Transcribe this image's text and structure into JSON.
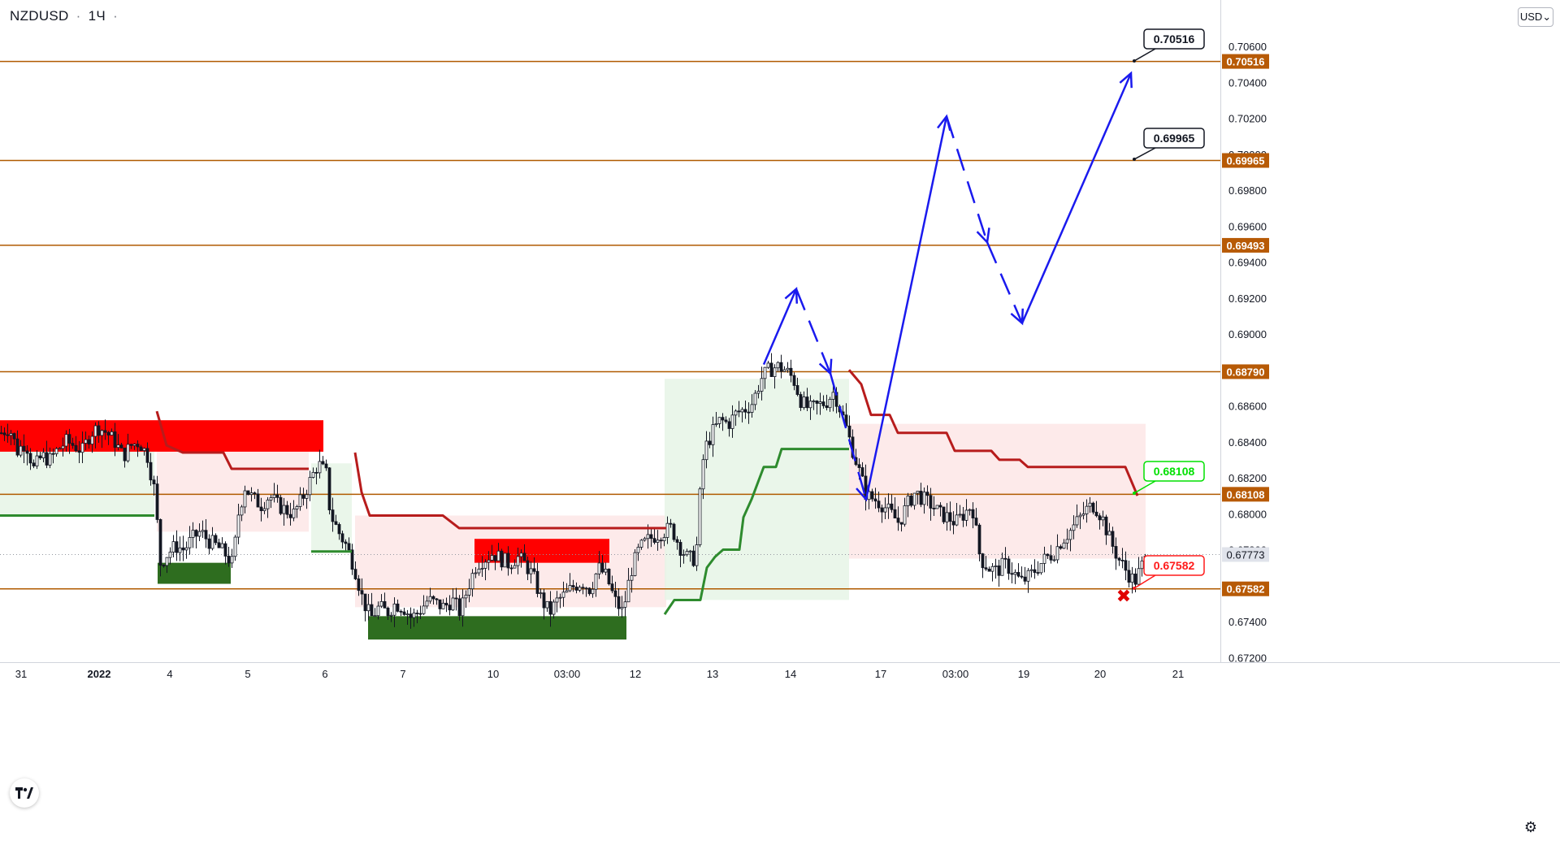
{
  "header": {
    "symbol": "NZDUSD",
    "separator": "·",
    "timeframe": "1Ч",
    "tail": "·"
  },
  "currency_button": "USD⌄",
  "colors": {
    "level_line": "#b05a00",
    "level_badge_bg": "#b75a06",
    "blue_path": "#1a1aee",
    "supply_zone": "#ff0000",
    "demand_zone": "#2e6d1f",
    "trend_red": "#b71c1c",
    "trend_green": "#2e8b2e",
    "bear_fill": "#fde6e6",
    "bull_fill": "#e6f4e6",
    "green_label": "#00e000",
    "red_label": "#ff1a1a"
  },
  "chart_data": {
    "type": "candlestick",
    "symbol": "NZDUSD",
    "timeframe": "1Ч",
    "ylim": [
      0.6715,
      0.7075
    ],
    "y_ticks": [
      "0.70600",
      "0.70400",
      "0.70200",
      "0.70000",
      "0.69800",
      "0.69600",
      "0.69400",
      "0.69200",
      "0.69000",
      "0.68800",
      "0.68600",
      "0.68400",
      "0.68200",
      "0.68000",
      "0.67800",
      "0.67600",
      "0.67400",
      "0.67200"
    ],
    "x_ticks": [
      {
        "label": "31",
        "bold": false
      },
      {
        "label": "2022",
        "bold": true
      },
      {
        "label": "4",
        "bold": false
      },
      {
        "label": "5",
        "bold": false
      },
      {
        "label": "6",
        "bold": false
      },
      {
        "label": "7",
        "bold": false
      },
      {
        "label": "10",
        "bold": false
      },
      {
        "label": "03:00",
        "bold": false
      },
      {
        "label": "12",
        "bold": false
      },
      {
        "label": "13",
        "bold": false
      },
      {
        "label": "14",
        "bold": false
      },
      {
        "label": "17",
        "bold": false
      },
      {
        "label": "03:00",
        "bold": false
      },
      {
        "label": "19",
        "bold": false
      },
      {
        "label": "20",
        "bold": false
      },
      {
        "label": "21",
        "bold": false
      }
    ],
    "horizontal_levels": [
      {
        "value": 0.70516,
        "label": "0.70516"
      },
      {
        "value": 0.69965,
        "label": "0.69965"
      },
      {
        "value": 0.69493,
        "label": "0.69493"
      },
      {
        "value": 0.6879,
        "label": "0.68790"
      },
      {
        "value": 0.68108,
        "label": "0.68108"
      },
      {
        "value": 0.67582,
        "label": "0.67582"
      }
    ],
    "current_price": {
      "value": 0.67773,
      "label": "0.67773"
    },
    "callouts": [
      {
        "label": "0.70516",
        "value": 0.70516,
        "style": "black"
      },
      {
        "label": "0.69965",
        "value": 0.69965,
        "style": "black"
      },
      {
        "label": "0.68108",
        "value": 0.68108,
        "style": "green"
      },
      {
        "label": "0.67582",
        "value": 0.67582,
        "style": "red"
      }
    ],
    "supply_zones": [
      {
        "t0": 0,
        "t1": 398,
        "low": 0.68345,
        "high": 0.6852
      },
      {
        "t0": 584,
        "t1": 750,
        "low": 0.67727,
        "high": 0.6786
      }
    ],
    "demand_zones": [
      {
        "t0": 194,
        "t1": 284,
        "low": 0.6761,
        "high": 0.67727
      },
      {
        "t0": 453,
        "t1": 771,
        "low": 0.673,
        "high": 0.6743
      }
    ],
    "projected_path": [
      [
        940,
        0.6883
      ],
      [
        980,
        0.6925
      ],
      [
        1022,
        0.6878
      ],
      [
        1066,
        0.6808
      ],
      [
        1165,
        0.7021
      ],
      [
        1215,
        0.6951
      ],
      [
        1258,
        0.6906
      ],
      [
        1392,
        0.7045
      ]
    ],
    "prices": [
      [
        0,
        0.6845
      ],
      [
        10,
        0.6848
      ],
      [
        20,
        0.6835
      ],
      [
        30,
        0.684
      ],
      [
        40,
        0.6825
      ],
      [
        50,
        0.6832
      ],
      [
        60,
        0.683
      ],
      [
        70,
        0.6836
      ],
      [
        80,
        0.684
      ],
      [
        90,
        0.6838
      ],
      [
        100,
        0.6835
      ],
      [
        110,
        0.6845
      ],
      [
        120,
        0.6848
      ],
      [
        130,
        0.6845
      ],
      [
        140,
        0.684
      ],
      [
        150,
        0.6832
      ],
      [
        160,
        0.6838
      ],
      [
        170,
        0.684
      ],
      [
        180,
        0.6832
      ],
      [
        190,
        0.681
      ],
      [
        195,
        0.6772
      ],
      [
        205,
        0.6778
      ],
      [
        215,
        0.6782
      ],
      [
        225,
        0.678
      ],
      [
        235,
        0.6786
      ],
      [
        245,
        0.679
      ],
      [
        255,
        0.6785
      ],
      [
        265,
        0.6782
      ],
      [
        275,
        0.6778
      ],
      [
        285,
        0.6772
      ],
      [
        292,
        0.68
      ],
      [
        300,
        0.6815
      ],
      [
        310,
        0.6808
      ],
      [
        320,
        0.6805
      ],
      [
        330,
        0.681
      ],
      [
        340,
        0.6805
      ],
      [
        350,
        0.6802
      ],
      [
        360,
        0.68
      ],
      [
        370,
        0.6808
      ],
      [
        380,
        0.6818
      ],
      [
        390,
        0.6828
      ],
      [
        400,
        0.6822
      ],
      [
        405,
        0.68
      ],
      [
        415,
        0.679
      ],
      [
        425,
        0.6782
      ],
      [
        435,
        0.677
      ],
      [
        445,
        0.6752
      ],
      [
        455,
        0.6742
      ],
      [
        465,
        0.6748
      ],
      [
        475,
        0.6745
      ],
      [
        485,
        0.675
      ],
      [
        495,
        0.6748
      ],
      [
        505,
        0.6742
      ],
      [
        515,
        0.6746
      ],
      [
        525,
        0.6752
      ],
      [
        535,
        0.675
      ],
      [
        545,
        0.6748
      ],
      [
        555,
        0.6752
      ],
      [
        565,
        0.6745
      ],
      [
        575,
        0.676
      ],
      [
        585,
        0.6772
      ],
      [
        595,
        0.6775
      ],
      [
        605,
        0.6778
      ],
      [
        615,
        0.6775
      ],
      [
        625,
        0.6772
      ],
      [
        635,
        0.6776
      ],
      [
        645,
        0.6772
      ],
      [
        655,
        0.6765
      ],
      [
        665,
        0.6752
      ],
      [
        675,
        0.6745
      ],
      [
        685,
        0.6752
      ],
      [
        695,
        0.6755
      ],
      [
        705,
        0.676
      ],
      [
        715,
        0.6762
      ],
      [
        725,
        0.6758
      ],
      [
        735,
        0.677
      ],
      [
        745,
        0.6765
      ],
      [
        755,
        0.6752
      ],
      [
        765,
        0.6745
      ],
      [
        775,
        0.6768
      ],
      [
        785,
        0.678
      ],
      [
        795,
        0.6785
      ],
      [
        805,
        0.6788
      ],
      [
        815,
        0.679
      ],
      [
        825,
        0.6792
      ],
      [
        835,
        0.6782
      ],
      [
        845,
        0.6775
      ],
      [
        855,
        0.6775
      ],
      [
        860,
        0.681
      ],
      [
        865,
        0.6835
      ],
      [
        875,
        0.6845
      ],
      [
        885,
        0.6852
      ],
      [
        895,
        0.685
      ],
      [
        905,
        0.6856
      ],
      [
        915,
        0.6858
      ],
      [
        925,
        0.6862
      ],
      [
        935,
        0.6875
      ],
      [
        945,
        0.688
      ],
      [
        955,
        0.6882
      ],
      [
        965,
        0.688
      ],
      [
        975,
        0.6875
      ],
      [
        985,
        0.6862
      ],
      [
        995,
        0.6858
      ],
      [
        1005,
        0.686
      ],
      [
        1015,
        0.6862
      ],
      [
        1025,
        0.6868
      ],
      [
        1035,
        0.6855
      ],
      [
        1045,
        0.684
      ],
      [
        1055,
        0.6825
      ],
      [
        1065,
        0.681
      ],
      [
        1075,
        0.6808
      ],
      [
        1085,
        0.6805
      ],
      [
        1095,
        0.68
      ],
      [
        1105,
        0.6795
      ],
      [
        1115,
        0.6805
      ],
      [
        1125,
        0.6812
      ],
      [
        1135,
        0.6808
      ],
      [
        1145,
        0.6805
      ],
      [
        1155,
        0.68
      ],
      [
        1165,
        0.6798
      ],
      [
        1175,
        0.6795
      ],
      [
        1185,
        0.68
      ],
      [
        1195,
        0.6805
      ],
      [
        1205,
        0.6775
      ],
      [
        1215,
        0.677
      ],
      [
        1225,
        0.6768
      ],
      [
        1235,
        0.6772
      ],
      [
        1245,
        0.6768
      ],
      [
        1255,
        0.6762
      ],
      [
        1265,
        0.6765
      ],
      [
        1275,
        0.677
      ],
      [
        1285,
        0.6775
      ],
      [
        1295,
        0.6778
      ],
      [
        1305,
        0.6785
      ],
      [
        1315,
        0.679
      ],
      [
        1325,
        0.6796
      ],
      [
        1335,
        0.6802
      ],
      [
        1345,
        0.6805
      ],
      [
        1355,
        0.6798
      ],
      [
        1365,
        0.6785
      ],
      [
        1375,
        0.6775
      ],
      [
        1385,
        0.6768
      ],
      [
        1395,
        0.6762
      ],
      [
        1405,
        0.6772
      ],
      [
        1412,
        0.6777
      ]
    ],
    "trend_red": [
      [
        [
          193,
          0.6857
        ],
        [
          205,
          0.6838
        ],
        [
          215,
          0.6836
        ],
        [
          225,
          0.6834
        ],
        [
          275,
          0.6834
        ],
        [
          285,
          0.6825
        ],
        [
          380,
          0.6825
        ]
      ],
      [
        [
          437,
          0.6834
        ],
        [
          445,
          0.6812
        ],
        [
          455,
          0.6799
        ],
        [
          545,
          0.6799
        ],
        [
          565,
          0.6792
        ],
        [
          820,
          0.6792
        ]
      ],
      [
        [
          1045,
          0.688
        ],
        [
          1060,
          0.6872
        ],
        [
          1072,
          0.6855
        ],
        [
          1095,
          0.6855
        ],
        [
          1105,
          0.6845
        ],
        [
          1165,
          0.6845
        ],
        [
          1175,
          0.6835
        ],
        [
          1220,
          0.6835
        ],
        [
          1230,
          0.683
        ],
        [
          1255,
          0.683
        ],
        [
          1265,
          0.6826
        ],
        [
          1385,
          0.6826
        ],
        [
          1400,
          0.681
        ]
      ]
    ],
    "trend_green": [
      [
        [
          0,
          0.6799
        ],
        [
          190,
          0.6799
        ]
      ],
      [
        [
          383,
          0.6779
        ],
        [
          433,
          0.6779
        ]
      ],
      [
        [
          818,
          0.6744
        ],
        [
          830,
          0.6752
        ],
        [
          862,
          0.6752
        ],
        [
          870,
          0.677
        ],
        [
          880,
          0.6776
        ],
        [
          890,
          0.678
        ],
        [
          910,
          0.678
        ],
        [
          915,
          0.6798
        ],
        [
          925,
          0.6808
        ],
        [
          935,
          0.682
        ],
        [
          940,
          0.6826
        ],
        [
          955,
          0.6826
        ],
        [
          962,
          0.6836
        ],
        [
          1045,
          0.6836
        ]
      ]
    ]
  }
}
